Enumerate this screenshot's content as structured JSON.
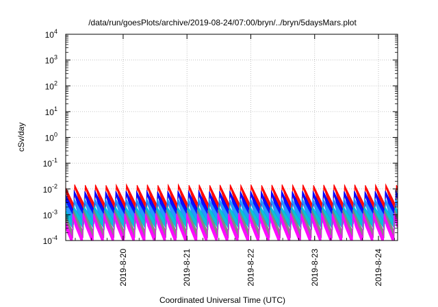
{
  "chart_data": {
    "type": "line",
    "title": "/data/run/goesPlots/archive/2019-08-24/07:00/bryn/../bryn/5daysMars.plot",
    "xlabel": "Coordinated Universal Time (UTC)",
    "ylabel": "cSv/day",
    "yscale": "log",
    "ylim": [
      0.0001,
      10000
    ],
    "xlim": [
      "2019-08-19 02:24",
      "2019-08-24 07:12"
    ],
    "grid": true,
    "x_ticks": [
      "2019-8-20",
      "2019-8-21",
      "2019-8-22",
      "2019-8-23",
      "2019-8-24"
    ],
    "y_ticks": [
      {
        "base": "10",
        "exp": "-4"
      },
      {
        "base": "10",
        "exp": "-3"
      },
      {
        "base": "10",
        "exp": "-2"
      },
      {
        "base": "10",
        "exp": "-1"
      },
      {
        "base": "10",
        "exp": "0"
      },
      {
        "base": "10",
        "exp": "1"
      },
      {
        "base": "10",
        "exp": "2"
      },
      {
        "base": "10",
        "exp": "3"
      },
      {
        "base": "10",
        "exp": "4"
      }
    ],
    "sawtooth_period_hours": 3.9,
    "series": [
      {
        "color": "#ff0000",
        "peak": 0.015,
        "trough": 0.0022,
        "band": 0.003
      },
      {
        "color": "#0000ff",
        "peak": 0.0085,
        "trough": 0.0013,
        "band": 0.002
      },
      {
        "color": "#1e90ff",
        "peak": 0.0045,
        "trough": 0.0008,
        "band": 0.0011
      },
      {
        "color": "#00bcd4",
        "peak": 0.0022,
        "trough": 0.0005,
        "band": 0.0006
      },
      {
        "color": "#808080",
        "peak": 0.0016,
        "trough": 0.00022,
        "band": 0.0004
      },
      {
        "color": "#ff00ff",
        "peak": 0.0012,
        "trough": 0.00012,
        "band": 0.0003
      }
    ]
  }
}
